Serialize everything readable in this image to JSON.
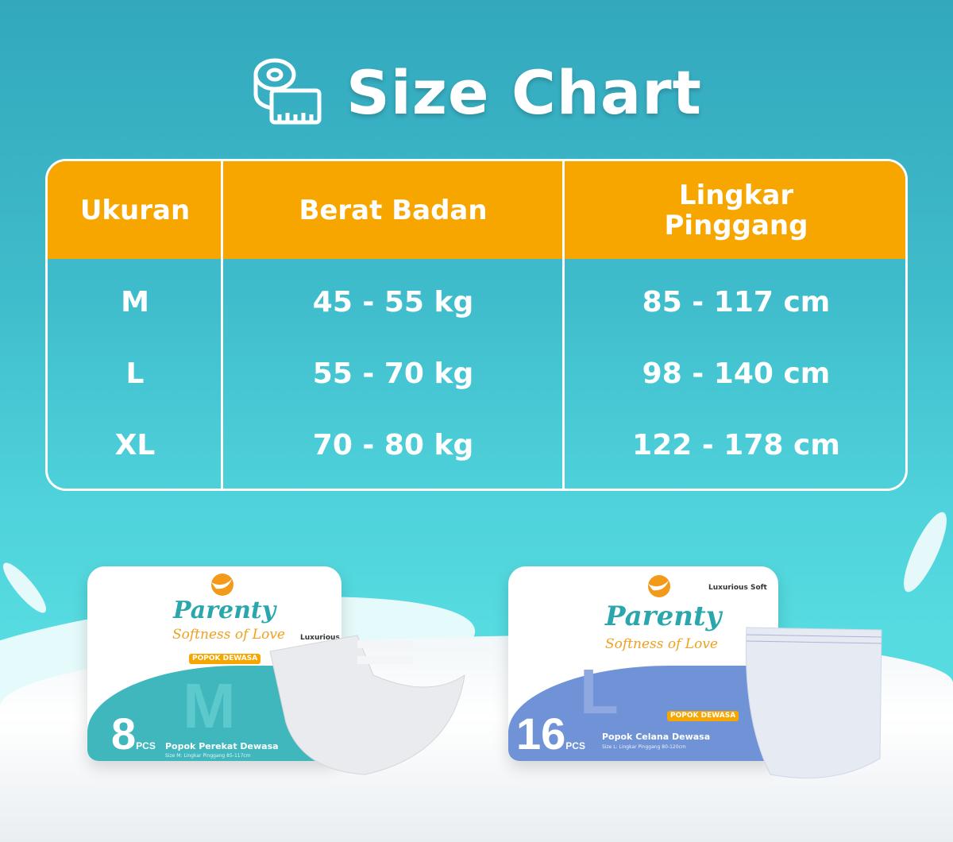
{
  "title": "Size Chart",
  "icons": {
    "title": "measuring-tape-icon"
  },
  "colors": {
    "header": "#f7a600",
    "background": "#3fbccb",
    "border": "#ffffff"
  },
  "table": {
    "headers": [
      "Ukuran",
      "Berat Badan",
      "Lingkar Pinggang"
    ],
    "rows": [
      {
        "size": "M",
        "weight": "45 - 55 kg",
        "waist": "85 - 117 cm"
      },
      {
        "size": "L",
        "weight": "55 - 70 kg",
        "waist": "98 - 140 cm"
      },
      {
        "size": "XL",
        "weight": "70 - 80 kg",
        "waist": "122 - 178 cm"
      }
    ]
  },
  "products": [
    {
      "brand": "Parenty",
      "tagline": "Softness of Love",
      "badge": "POPOK DEWASA",
      "feature": "Luxurious Soft",
      "size": "M",
      "count": "8",
      "unit": "PCS",
      "type": "Popok Perekat Dewasa",
      "sub": "Size M: Lingkar Pinggang 85-117cm",
      "color": "#3fb7bd"
    },
    {
      "brand": "Parenty",
      "tagline": "Softness of Love",
      "badge": "POPOK DEWASA",
      "feature": "Luxurious Soft",
      "size": "L",
      "count": "16",
      "unit": "PCS",
      "type": "Popok Celana Dewasa",
      "sub": "Size L: Lingkar Pinggang 80-120cm",
      "color": "#6f93d6"
    }
  ]
}
